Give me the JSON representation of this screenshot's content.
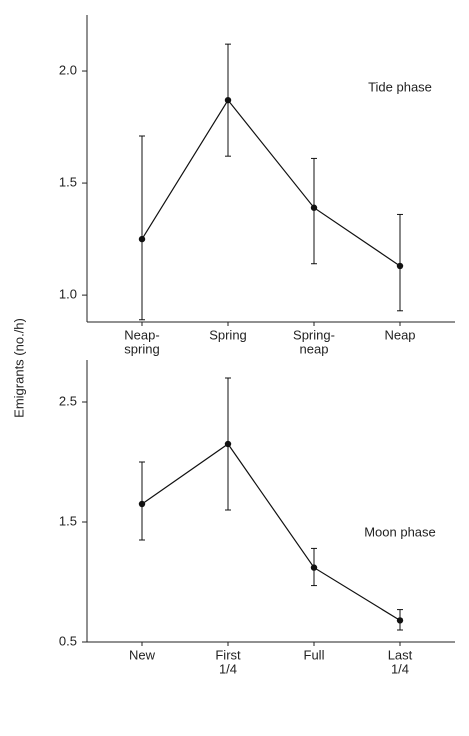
{
  "y_label": "Emigrants (no./h)",
  "chart_data": [
    {
      "type": "line",
      "annotation": "Tide phase",
      "categories": [
        [
          "Neap-",
          "spring"
        ],
        [
          "Spring"
        ],
        [
          "Spring-",
          "neap"
        ],
        [
          "Neap"
        ]
      ],
      "values": [
        1.25,
        1.87,
        1.39,
        1.13
      ],
      "lower": [
        0.89,
        1.62,
        1.14,
        0.93
      ],
      "upper": [
        1.71,
        2.12,
        1.61,
        1.36
      ],
      "color": "#111111",
      "ylim": [
        0.88,
        2.25
      ],
      "yticks": [
        {
          "value": 1.0,
          "label": "1.0"
        },
        1.5,
        {
          "value": 2.0,
          "label": "2.0"
        }
      ]
    },
    {
      "type": "line",
      "annotation": "Moon phase",
      "categories": [
        [
          "New"
        ],
        [
          "First",
          "1/4"
        ],
        [
          "Full"
        ],
        [
          "Last",
          "1/4"
        ]
      ],
      "values": [
        1.65,
        2.15,
        1.12,
        0.68
      ],
      "lower": [
        1.35,
        1.6,
        0.97,
        0.6
      ],
      "upper": [
        2.0,
        2.7,
        1.28,
        0.77
      ],
      "color": "#111111",
      "ylim": [
        0.5,
        2.85
      ],
      "yticks": [
        0.5,
        1.5,
        2.5
      ]
    }
  ]
}
